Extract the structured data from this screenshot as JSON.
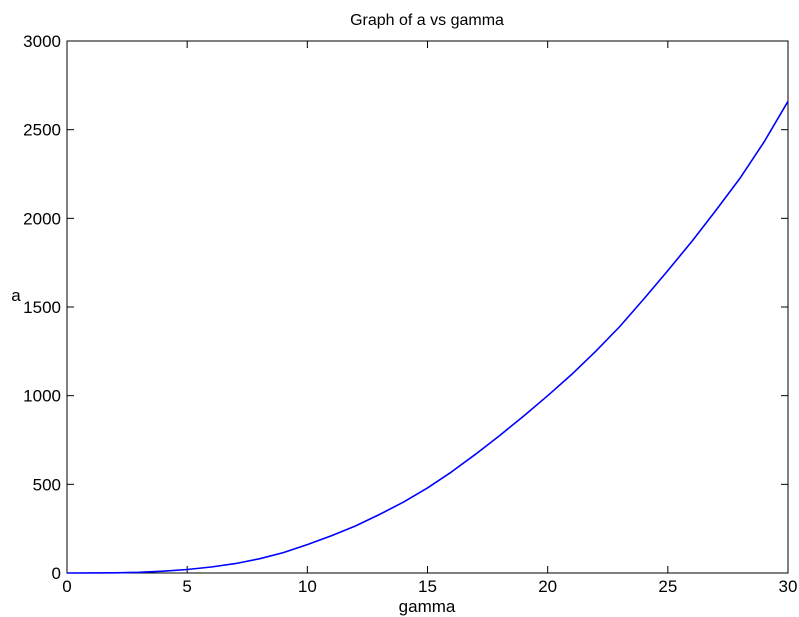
{
  "chart_data": {
    "type": "line",
    "title": "Graph of a vs gamma",
    "xlabel": "gamma",
    "ylabel": "a",
    "xlim": [
      0,
      30
    ],
    "ylim": [
      0,
      3000
    ],
    "xticks": [
      0,
      5,
      10,
      15,
      20,
      25,
      30
    ],
    "yticks": [
      0,
      500,
      1000,
      1500,
      2000,
      2500,
      3000
    ],
    "grid": false,
    "legend": "none",
    "series": [
      {
        "color": "#0000ff",
        "x": [
          0,
          1,
          2,
          3,
          4,
          5,
          6,
          7,
          8,
          9,
          10,
          11,
          12,
          13,
          14,
          15,
          16,
          17,
          18,
          19,
          20,
          21,
          22,
          23,
          24,
          25,
          26,
          27,
          28,
          29,
          30
        ],
        "y": [
          0,
          0.3,
          1.3,
          3.9,
          10,
          20,
          34,
          53,
          80,
          115,
          160,
          210,
          265,
          330,
          400,
          480,
          570,
          670,
          775,
          885,
          1000,
          1120,
          1250,
          1390,
          1545,
          1705,
          1870,
          2045,
          2225,
          2430,
          2660
        ]
      }
    ]
  }
}
